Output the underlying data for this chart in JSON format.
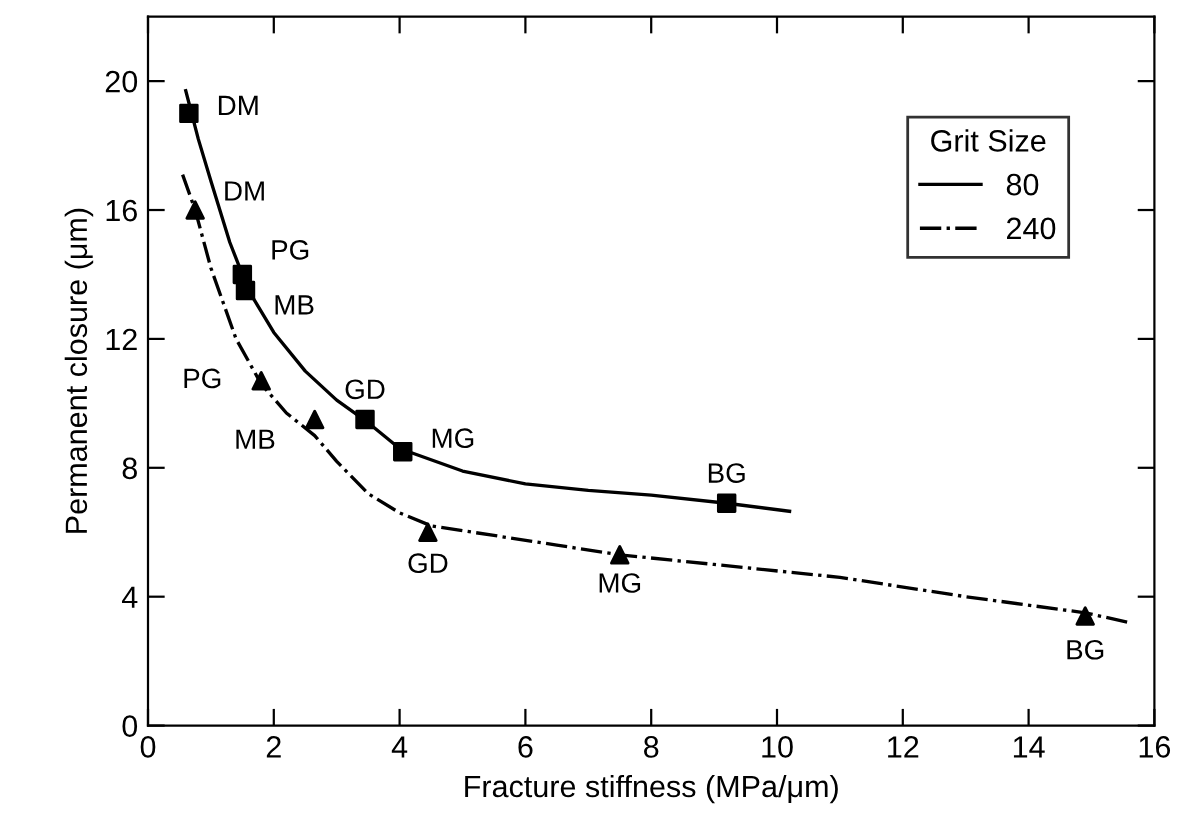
{
  "chart_data": {
    "type": "line",
    "xlabel": "Fracture stiffness (MPa/μm)",
    "ylabel": "Permanent closure (μm)",
    "legend_title": "Grit Size",
    "legend": "top right",
    "grid": false,
    "xlim": [
      0,
      16
    ],
    "ylim": [
      0,
      22
    ],
    "xticks": [
      0,
      2,
      4,
      6,
      8,
      10,
      12,
      14,
      16
    ],
    "yticks": [
      0,
      4,
      8,
      12,
      16,
      20
    ],
    "series": [
      {
        "name": "80",
        "color": "#000000",
        "line_style": "solid",
        "marker": "none",
        "x": [
          0.6,
          0.8,
          1.0,
          1.3,
          1.6,
          2.0,
          2.5,
          3.0,
          3.5,
          4.0,
          5,
          6,
          7,
          8,
          9.2,
          10.2
        ],
        "values": [
          19.7,
          18.2,
          16.9,
          15.0,
          13.5,
          12.2,
          11.0,
          10.1,
          9.4,
          8.6,
          7.9,
          7.5,
          7.3,
          7.15,
          6.9,
          6.65
        ]
      },
      {
        "name": "240",
        "color": "#000000",
        "line_style": "dashdot",
        "marker": "none",
        "x": [
          0.55,
          0.75,
          1.0,
          1.4,
          1.8,
          2.2,
          2.65,
          3.0,
          3.5,
          4.0,
          4.5,
          5.5,
          6.5,
          7.5,
          9,
          11,
          13,
          14.9,
          15.6
        ],
        "values": [
          17.1,
          16.0,
          14.2,
          12.0,
          10.6,
          9.7,
          9.0,
          8.2,
          7.2,
          6.6,
          6.2,
          5.9,
          5.6,
          5.3,
          5.0,
          4.6,
          4.0,
          3.5,
          3.2
        ]
      },
      {
        "type": "scatter",
        "color": "#000000",
        "marker": "square",
        "x": [
          0.65,
          1.5,
          1.55,
          3.45,
          4.05,
          9.2
        ],
        "values": [
          19,
          14,
          13.5,
          9.5,
          8.5,
          6.9
        ]
      },
      {
        "type": "scatter",
        "color": "#000000",
        "marker": "triangle",
        "x": [
          0.75,
          1.8,
          2.65,
          4.45,
          7.5,
          14.9
        ],
        "values": [
          16,
          10.7,
          9.5,
          6.0,
          5.3,
          3.4
        ]
      }
    ],
    "annotations": [
      {
        "text": "DM",
        "x": 0.65,
        "y": 19
      },
      {
        "text": "PG",
        "x": 1.5,
        "y": 14
      },
      {
        "text": "MB",
        "x": 1.55,
        "y": 13.5
      },
      {
        "text": "GD",
        "x": 3.45,
        "y": 9.5
      },
      {
        "text": "MG",
        "x": 4.05,
        "y": 8.5
      },
      {
        "text": "BG",
        "x": 9.2,
        "y": 6.9
      },
      {
        "text": "DM",
        "x": 0.75,
        "y": 16
      },
      {
        "text": "PG",
        "x": 1.8,
        "y": 10.7
      },
      {
        "text": "MB",
        "x": 2.65,
        "y": 9.5
      },
      {
        "text": "GD",
        "x": 4.45,
        "y": 6.0
      },
      {
        "text": "MG",
        "x": 7.5,
        "y": 5.3
      },
      {
        "text": "BG",
        "x": 14.9,
        "y": 3.4
      }
    ]
  }
}
